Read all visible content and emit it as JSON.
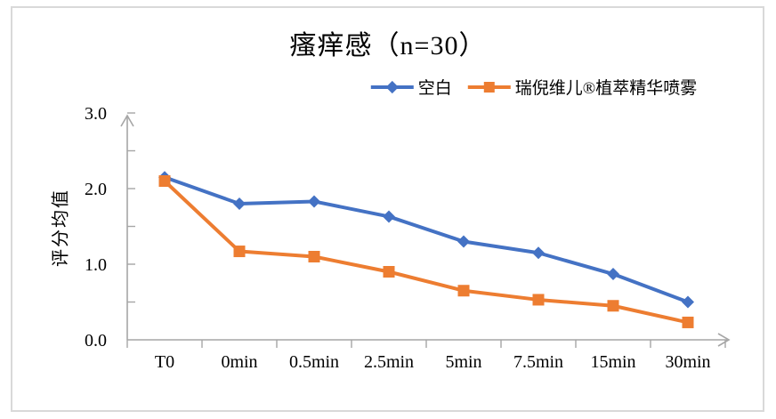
{
  "chart_data": {
    "type": "line",
    "title": "瘙痒感（n=30）",
    "ylabel": "评分均值",
    "xlabel": "",
    "categories": [
      "T0",
      "0min",
      "0.5min",
      "2.5min",
      "5min",
      "7.5min",
      "15min",
      "30min"
    ],
    "series": [
      {
        "name": "空白",
        "color": "#4472C4",
        "marker": "diamond",
        "values": [
          2.15,
          1.8,
          1.83,
          1.63,
          1.3,
          1.15,
          0.87,
          0.5
        ]
      },
      {
        "name": "瑞倪维儿®植萃精华喷雾",
        "color": "#ED7D31",
        "marker": "square",
        "values": [
          2.1,
          1.17,
          1.1,
          0.9,
          0.65,
          0.53,
          0.45,
          0.23
        ]
      }
    ],
    "ylim": [
      0.0,
      3.0
    ],
    "y_tick_labels": [
      "0.0",
      "1.0",
      "2.0",
      "3.0"
    ],
    "y_minor_tick_step": 0.5,
    "grid": false,
    "legend_position": "top",
    "axis_color": "#A6A6A6",
    "frame_color": "#D9D9D9",
    "text_color": "#000000"
  }
}
